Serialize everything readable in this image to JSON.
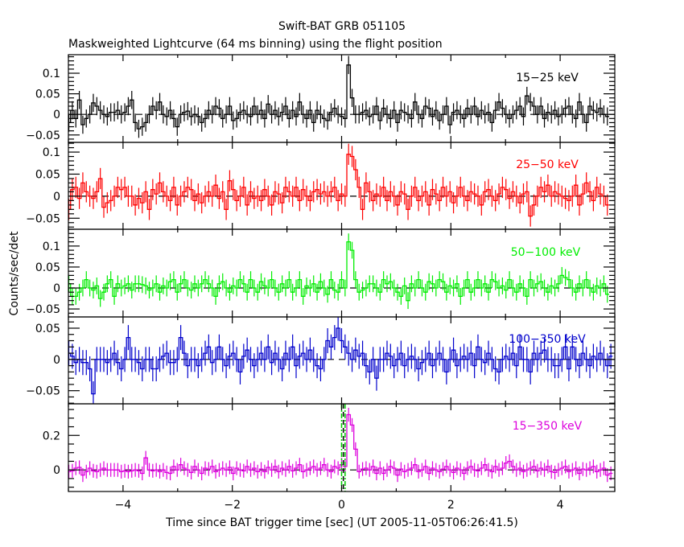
{
  "chart_data": {
    "type": "line",
    "title": "Swift-BAT GRB 051105",
    "subtitle": "Maskweighted Lightcurve (64 ms binning) using the flight position",
    "xlabel": "Time since BAT trigger time [sec] (UT 2005-11-05T06:26:41.5)",
    "ylabel": "Counts/sec/det",
    "xlim": [
      -5,
      5
    ],
    "x_ticks": [
      -4,
      -2,
      0,
      2,
      4
    ],
    "x_tick_labels": [
      "−4",
      "−2",
      "0",
      "2",
      "4"
    ],
    "bin_width_sec": 0.064,
    "x_start": -5.024,
    "grid": false,
    "vertical_markers": [
      {
        "x": 0.0,
        "style": "dash-dot",
        "color": "#00cc00"
      },
      {
        "x": 0.032,
        "style": "dashed",
        "color": "#000000"
      },
      {
        "x": 0.064,
        "style": "dash-dot",
        "color": "#00cc00"
      }
    ],
    "panels": [
      {
        "name": "15-25 keV",
        "label": "15−25 keV",
        "color": "#000000",
        "ylim": [
          -0.068,
          0.145
        ],
        "y_ticks": [
          -0.05,
          0,
          0.05,
          0.1
        ],
        "y_tick_labels": [
          "−0.05",
          "0",
          "0.05",
          "0.1"
        ],
        "error": 0.022,
        "values": [
          -0.02,
          0.01,
          -0.01,
          0.035,
          -0.025,
          -0.01,
          0.0,
          0.028,
          0.02,
          0.01,
          0.0,
          -0.005,
          0.005,
          0.005,
          0.01,
          0.0,
          0.005,
          0.02,
          0.035,
          -0.02,
          -0.035,
          -0.03,
          -0.02,
          0.0,
          0.02,
          0.01,
          0.03,
          0.0,
          -0.005,
          0.01,
          -0.01,
          -0.03,
          0.0,
          0.005,
          0.008,
          -0.005,
          0.0,
          -0.005,
          -0.02,
          -0.01,
          0.01,
          0.0,
          0.02,
          0.015,
          -0.01,
          0.0,
          0.02,
          -0.015,
          -0.01,
          0.005,
          0.01,
          0.0,
          -0.005,
          0.02,
          0.0,
          0.01,
          -0.01,
          0.025,
          0.0,
          0.01,
          -0.005,
          0.005,
          0.02,
          -0.01,
          0.01,
          -0.005,
          0.03,
          0.0,
          -0.01,
          0.01,
          -0.02,
          0.01,
          0.0,
          -0.01,
          -0.015,
          0.005,
          0.015,
          0.0,
          -0.005,
          -0.01,
          0.12,
          0.04,
          0.0,
          0.0,
          0.005,
          0.01,
          -0.005,
          0.0,
          0.02,
          -0.015,
          0.015,
          0.0,
          -0.01,
          0.01,
          -0.02,
          0.01,
          0.005,
          0.0,
          -0.01,
          0.03,
          0.0,
          -0.01,
          0.02,
          0.015,
          -0.005,
          0.01,
          -0.015,
          0.0,
          0.02,
          -0.025,
          0.005,
          0.01,
          0.0,
          -0.01,
          0.015,
          0.0,
          0.02,
          -0.005,
          0.01,
          0.0,
          0.005,
          -0.02,
          0.01,
          0.03,
          0.015,
          0.0,
          -0.01,
          0.0,
          0.01,
          0.02,
          -0.005,
          0.045,
          0.03,
          0.02,
          0.0,
          0.02,
          -0.01,
          0.005,
          0.0,
          0.01,
          -0.005,
          0.0,
          0.015,
          0.02,
          0.0,
          -0.01,
          0.03,
          0.0,
          -0.02,
          0.02,
          0.01,
          0.005,
          0.015,
          0.0,
          -0.005
        ],
        "x_units": "sec",
        "y_units": "Counts/sec/det"
      },
      {
        "name": "25-50 keV",
        "label": "25−50 keV",
        "color": "#ff0000",
        "ylim": [
          -0.075,
          0.122
        ],
        "y_ticks": [
          -0.05,
          0,
          0.05,
          0.1
        ],
        "y_tick_labels": [
          "−0.05",
          "0",
          "0.05",
          "0.1"
        ],
        "error": 0.024,
        "values": [
          -0.03,
          0.015,
          0.02,
          -0.005,
          0.03,
          0.01,
          0.0,
          -0.005,
          0.01,
          0.04,
          -0.025,
          -0.015,
          -0.01,
          0.0,
          0.02,
          0.015,
          0.02,
          0.0,
          0.0,
          -0.02,
          -0.005,
          -0.015,
          0.01,
          -0.03,
          0.015,
          0.005,
          0.03,
          0.01,
          0.0,
          -0.01,
          0.02,
          -0.02,
          0.0,
          0.01,
          0.02,
          0.015,
          -0.01,
          0.005,
          -0.015,
          0.0,
          0.01,
          0.0,
          0.025,
          -0.005,
          0.01,
          -0.03,
          0.035,
          0.015,
          -0.01,
          0.0,
          0.02,
          -0.02,
          0.01,
          -0.005,
          0.0,
          -0.01,
          0.015,
          0.0,
          -0.02,
          0.01,
          0.005,
          -0.015,
          0.02,
          0.01,
          0.0,
          0.02,
          -0.01,
          0.015,
          0.0,
          -0.01,
          0.01,
          0.015,
          0.005,
          0.01,
          0.0,
          0.01,
          0.02,
          -0.01,
          0.005,
          0.0,
          0.095,
          0.09,
          0.06,
          0.02,
          -0.03,
          0.03,
          0.01,
          -0.01,
          0.005,
          0.0,
          0.02,
          -0.01,
          0.01,
          0.0,
          -0.02,
          0.01,
          0.005,
          -0.03,
          0.0,
          0.02,
          -0.01,
          0.0,
          0.01,
          -0.02,
          0.015,
          0.005,
          -0.01,
          0.02,
          0.0,
          0.01,
          -0.015,
          0.0,
          0.02,
          0.0,
          -0.01,
          0.01,
          0.005,
          0.0,
          -0.02,
          0.01,
          0.015,
          0.0,
          -0.01,
          0.005,
          0.02,
          0.015,
          -0.005,
          0.01,
          0.0,
          -0.015,
          0.005,
          0.01,
          -0.045,
          -0.02,
          0.0,
          0.02,
          0.01,
          0.025,
          0.0,
          0.01,
          0.005,
          0.0,
          -0.005,
          -0.01,
          0.0,
          0.025,
          -0.02,
          0.005,
          0.03,
          0.01,
          -0.01,
          0.02,
          0.005,
          0.0,
          -0.02
        ],
        "x_units": "sec",
        "y_units": "Counts/sec/det"
      },
      {
        "name": "50-100 keV",
        "label": "50−100 keV",
        "color": "#00ee00",
        "ylim": [
          -0.069,
          0.14
        ],
        "y_ticks": [
          -0.05,
          0,
          0.05,
          0.1
        ],
        "y_tick_labels": [
          "−0.05",
          "0",
          "0.05",
          "0.1"
        ],
        "error": 0.02,
        "values": [
          0.01,
          -0.02,
          -0.02,
          -0.01,
          0.0,
          0.02,
          0.0,
          -0.005,
          0.005,
          -0.025,
          -0.01,
          0.01,
          0.02,
          -0.02,
          0.01,
          0.0,
          0.005,
          0.01,
          -0.005,
          0.01,
          0.01,
          0.008,
          0.005,
          -0.005,
          0.0,
          0.01,
          -0.01,
          0.005,
          0.0,
          0.015,
          0.02,
          -0.01,
          0.01,
          0.02,
          0.0,
          -0.005,
          0.01,
          0.0,
          0.01,
          0.02,
          0.01,
          0.0,
          -0.02,
          0.01,
          0.015,
          0.0,
          -0.01,
          0.005,
          0.0,
          0.02,
          0.01,
          -0.01,
          0.02,
          0.0,
          -0.01,
          0.015,
          0.005,
          0.0,
          0.02,
          0.0,
          -0.01,
          0.01,
          0.0,
          0.02,
          -0.01,
          0.0,
          0.02,
          -0.02,
          0.005,
          0.0,
          0.01,
          -0.01,
          0.015,
          0.0,
          -0.015,
          0.02,
          -0.005,
          -0.01,
          0.02,
          0.0,
          0.11,
          0.09,
          0.02,
          -0.01,
          -0.005,
          0.0,
          0.01,
          0.01,
          0.0,
          -0.01,
          0.02,
          0.01,
          0.015,
          0.0,
          -0.01,
          -0.02,
          0.005,
          -0.03,
          0.01,
          0.0,
          0.02,
          0.0,
          -0.01,
          0.015,
          0.01,
          0.0,
          0.02,
          0.015,
          -0.01,
          0.005,
          0.0,
          0.01,
          -0.02,
          0.0,
          0.02,
          -0.01,
          0.0,
          0.02,
          0.0,
          0.01,
          -0.01,
          0.02,
          0.015,
          0.0,
          0.005,
          -0.005,
          0.02,
          0.0,
          -0.01,
          0.01,
          0.0,
          -0.02,
          0.02,
          0.0,
          0.01,
          0.015,
          0.0,
          -0.01,
          0.005,
          0.0,
          0.01,
          0.03,
          0.025,
          0.02,
          0.0,
          -0.01,
          0.01,
          0.0,
          0.02,
          0.0,
          -0.01,
          0.005,
          0.0,
          0.01,
          -0.015
        ],
        "x_units": "sec",
        "y_units": "Counts/sec/det"
      },
      {
        "name": "100-350 keV",
        "label": "100−350 keV",
        "color": "#0000cc",
        "ylim": [
          -0.071,
          0.068
        ],
        "y_ticks": [
          -0.05,
          0,
          0.05
        ],
        "y_tick_labels": [
          "−0.05",
          "0",
          "0.05"
        ],
        "error": 0.02,
        "values": [
          0.01,
          0.005,
          -0.005,
          0.0,
          -0.005,
          -0.005,
          -0.015,
          -0.055,
          0.0,
          0.0,
          0.0,
          -0.005,
          0.0,
          0.01,
          -0.005,
          -0.015,
          0.0,
          0.035,
          0.0,
          0.0,
          -0.005,
          -0.015,
          0.0,
          0.0,
          -0.015,
          -0.015,
          0.0,
          0.005,
          0.01,
          -0.005,
          -0.005,
          0.0,
          0.035,
          0.01,
          -0.01,
          0.0,
          0.0,
          -0.01,
          0.0,
          0.01,
          0.02,
          -0.005,
          0.0,
          0.02,
          0.0,
          -0.01,
          0.005,
          0.01,
          0.0,
          -0.02,
          0.005,
          0.015,
          0.0,
          -0.01,
          0.0,
          0.01,
          0.0,
          0.02,
          -0.005,
          0.01,
          0.0,
          -0.015,
          0.01,
          0.0,
          0.02,
          -0.01,
          0.005,
          0.01,
          0.0,
          0.015,
          0.0,
          -0.01,
          -0.015,
          0.0,
          0.03,
          0.02,
          0.035,
          0.05,
          0.03,
          0.02,
          0.01,
          0.0,
          0.015,
          0.005,
          0.01,
          -0.01,
          -0.02,
          0.0,
          -0.03,
          0.0,
          0.0,
          0.01,
          0.005,
          -0.01,
          0.0,
          0.01,
          -0.01,
          0.0,
          0.005,
          0.0,
          -0.015,
          -0.005,
          0.0,
          0.01,
          -0.01,
          0.0,
          0.01,
          0.0,
          -0.02,
          0.0,
          0.015,
          -0.01,
          0.0,
          0.005,
          0.0,
          0.01,
          -0.01,
          0.02,
          0.0,
          -0.005,
          0.01,
          0.0,
          -0.015,
          -0.02,
          0.0,
          0.005,
          0.0,
          0.01,
          -0.01,
          0.02,
          0.0,
          0.0,
          -0.02,
          0.01,
          0.0,
          0.01,
          0.015,
          0.0,
          0.0,
          -0.01,
          -0.01,
          0.0,
          0.02,
          -0.015,
          0.02,
          0.0,
          -0.01,
          0.01,
          0.0,
          -0.01,
          0.005,
          0.0,
          0.01,
          0.0,
          -0.01,
          0.005
        ],
        "x_units": "sec",
        "y_units": "Counts/sec/det"
      },
      {
        "name": "15-350 keV",
        "label": "15−350 keV",
        "color": "#dd00dd",
        "ylim": [
          -0.125,
          0.383
        ],
        "y_ticks": [
          0,
          0.2
        ],
        "y_tick_labels": [
          "0",
          "0.2"
        ],
        "error": 0.04,
        "values": [
          -0.01,
          -0.005,
          0.01,
          0.015,
          -0.03,
          -0.01,
          0.01,
          -0.005,
          -0.01,
          0.0,
          0.01,
          0.0,
          0.0,
          0.0,
          0.0,
          -0.01,
          -0.005,
          -0.01,
          -0.005,
          0.0,
          -0.005,
          -0.02,
          0.07,
          0.0,
          -0.005,
          0.0,
          -0.01,
          0.0,
          -0.015,
          -0.02,
          0.02,
          0.0,
          0.03,
          0.01,
          0.0,
          -0.015,
          0.02,
          0.0,
          -0.02,
          0.01,
          0.005,
          0.02,
          -0.01,
          0.0,
          0.01,
          0.0,
          0.015,
          -0.02,
          0.01,
          0.0,
          -0.005,
          0.02,
          0.0,
          0.01,
          -0.01,
          0.005,
          -0.01,
          0.015,
          0.0,
          0.02,
          -0.01,
          0.01,
          0.0,
          0.02,
          -0.005,
          0.01,
          0.03,
          -0.01,
          0.0,
          0.01,
          0.02,
          0.0,
          0.01,
          0.03,
          0.0,
          -0.01,
          0.02,
          0.01,
          0.03,
          0.02,
          0.32,
          0.26,
          0.12,
          -0.01,
          0.005,
          0.01,
          0.0,
          0.02,
          -0.02,
          0.01,
          -0.02,
          0.0,
          0.02,
          0.01,
          -0.03,
          0.005,
          -0.01,
          0.0,
          0.01,
          0.03,
          -0.01,
          0.0,
          0.02,
          -0.02,
          0.01,
          0.0,
          -0.01,
          0.005,
          0.02,
          0.0,
          -0.015,
          0.01,
          0.0,
          -0.02,
          0.01,
          0.02,
          0.0,
          -0.005,
          0.01,
          0.03,
          0.0,
          -0.01,
          0.02,
          0.0,
          0.01,
          0.04,
          0.05,
          0.02,
          0.0,
          0.01,
          -0.01,
          0.0,
          0.01,
          0.02,
          -0.005,
          0.01,
          0.0,
          0.02,
          -0.01,
          -0.015,
          0.0,
          0.01,
          0.02,
          -0.01,
          0.0,
          0.01,
          -0.02,
          0.005,
          0.0,
          0.01,
          0.02,
          -0.01,
          0.0,
          0.01,
          -0.03,
          -0.02
        ],
        "x_units": "sec",
        "y_units": "Counts/sec/det"
      }
    ]
  }
}
